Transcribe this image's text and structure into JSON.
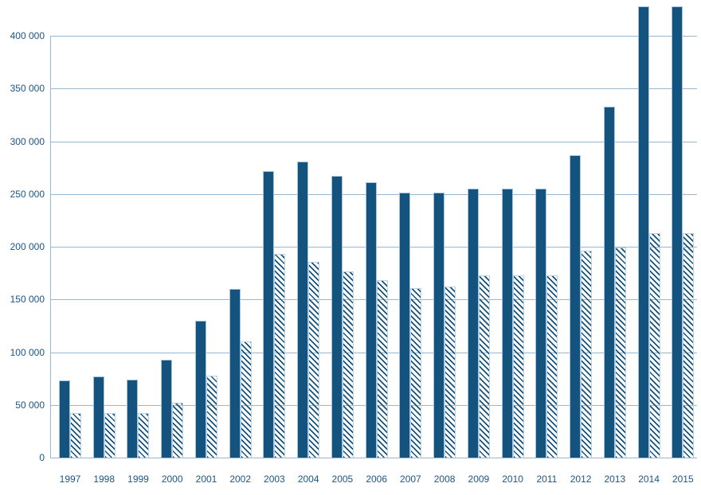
{
  "chart_data": {
    "type": "bar",
    "title": "",
    "xlabel": "",
    "ylabel": "",
    "categories": [
      "1997",
      "1998",
      "1999",
      "2000",
      "2001",
      "2002",
      "2003",
      "2004",
      "2005",
      "2006",
      "2007",
      "2008",
      "2009",
      "2010",
      "2011",
      "2012",
      "2013",
      "2014",
      "2015"
    ],
    "series": [
      {
        "name": "solid-dark-blue-bars",
        "style": "solid",
        "values": [
          73000,
          77000,
          74000,
          93000,
          130000,
          160000,
          272000,
          281000,
          267000,
          261000,
          251000,
          251000,
          255000,
          255000,
          255000,
          287000,
          333000,
          428000,
          428000
        ]
      },
      {
        "name": "diagonal-hatched-bars",
        "style": "diagonal-hatch",
        "values": [
          42000,
          42000,
          42000,
          52000,
          78000,
          110000,
          193000,
          186000,
          177000,
          168000,
          161000,
          162000,
          173000,
          173000,
          173000,
          196000,
          199000,
          213000,
          213000
        ]
      }
    ],
    "ylim": [
      0,
      433000
    ],
    "ytick_step": 50000,
    "y_tick_labels": [
      "0",
      "50 000",
      "100 000",
      "150 000",
      "200 000",
      "250 000",
      "300 000",
      "350 000",
      "400 000"
    ],
    "grid": "horizontal",
    "legend": "none",
    "colors": {
      "bar_fill": "#14537E",
      "bar_border": "#A6C4DA",
      "hatch_stripe": "#14537E",
      "hatch_border": "#BDD2E2",
      "gridline": "#9BB7CE",
      "axis": "#9BB7CE",
      "label_text": "#19568A",
      "background": "#FFFFFF"
    }
  }
}
